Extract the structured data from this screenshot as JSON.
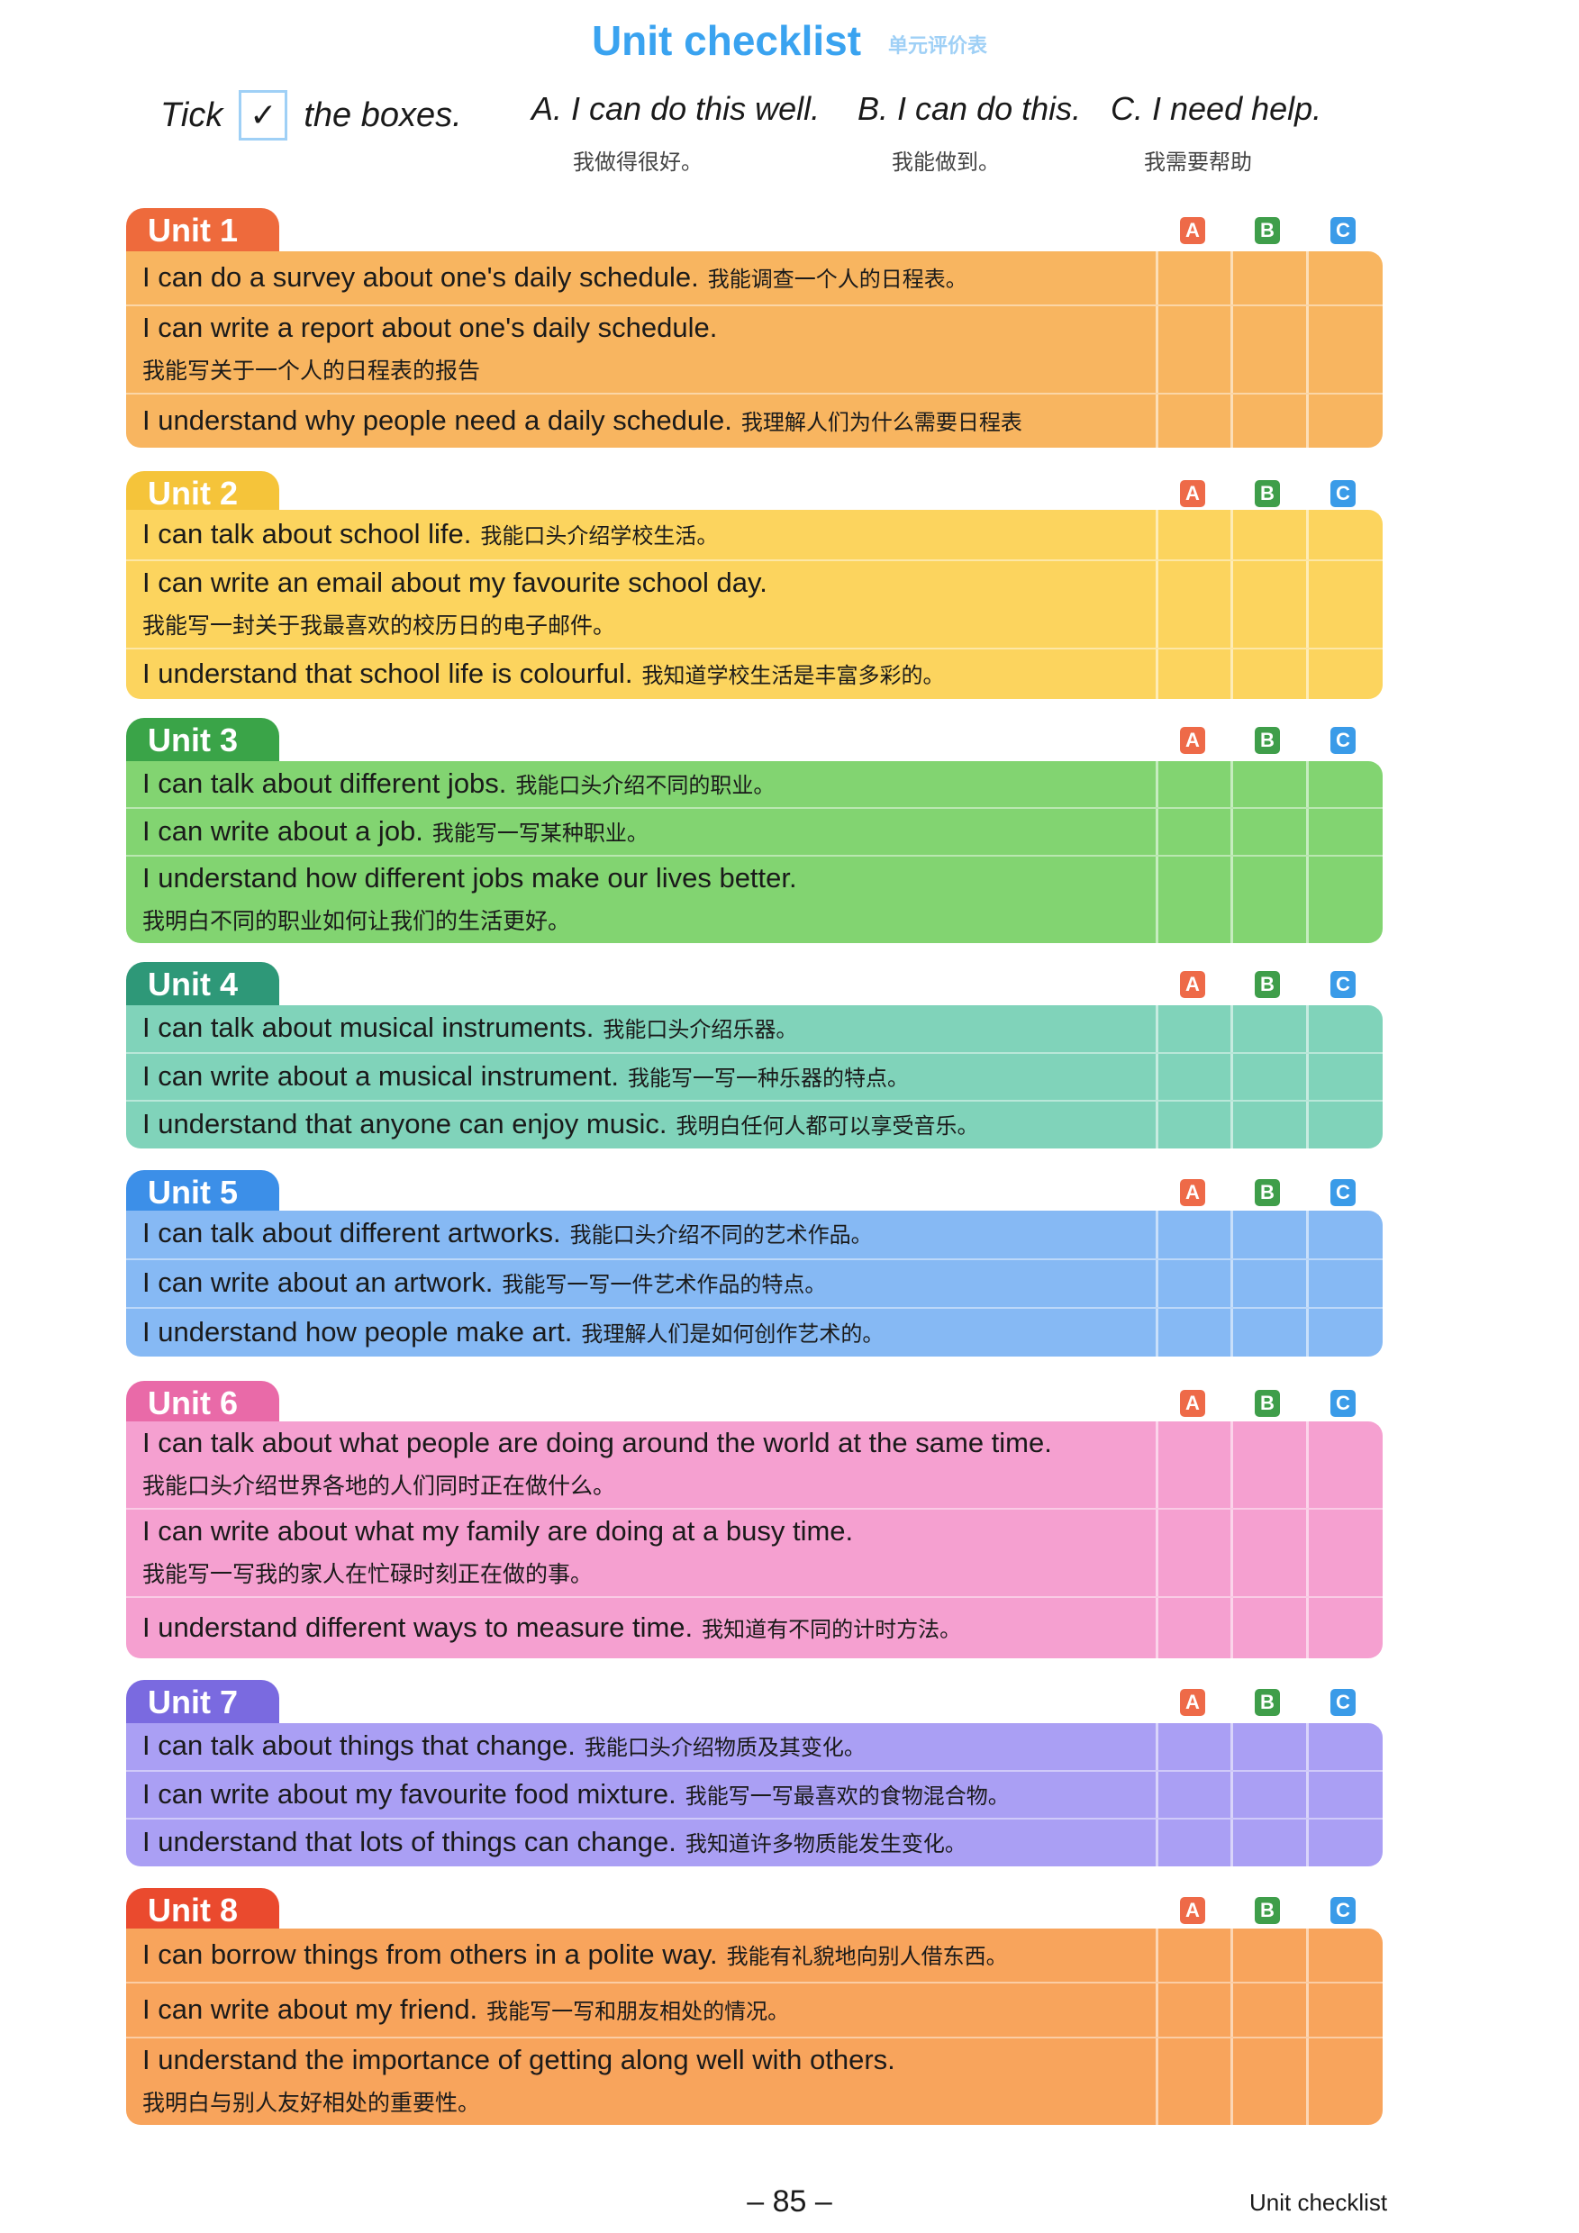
{
  "header": {
    "title": "Unit checklist",
    "title_cn": "单元评价表"
  },
  "legend": {
    "tick_prefix": "Tick",
    "tick_mark": "✓",
    "tick_suffix": "the boxes.",
    "options": [
      {
        "label": "A. I can do this well.",
        "cn": "我做得很好。"
      },
      {
        "label": "B. I can do this.",
        "cn": "我能做到。"
      },
      {
        "label": "C. I need help.",
        "cn": "我需要帮助"
      }
    ]
  },
  "grade_letters": [
    "A",
    "B",
    "C"
  ],
  "grade_colors": [
    "#ee6a48",
    "#3f9e4a",
    "#3a9be8"
  ],
  "units": [
    {
      "name": "Unit 1",
      "tab_color": "#ee6a3c",
      "body_color": "#f8b560",
      "rows": [
        {
          "en": "I can do a survey about one's daily schedule.",
          "cn": "我能调查一个人的日程表。"
        },
        {
          "en": "I can write a report about one's daily schedule.",
          "cn_line": "我能写关于一个人的日程表的报告"
        },
        {
          "en": "I understand why people need a daily schedule.",
          "cn": "我理解人们为什么需要日程表"
        }
      ]
    },
    {
      "name": "Unit 2",
      "tab_color": "#f5c43a",
      "body_color": "#fcd45e",
      "rows": [
        {
          "en": "I can talk about school life.",
          "cn": "我能口头介绍学校生活。"
        },
        {
          "en": "I can write an email about my favourite school day.",
          "cn_line": "我能写一封关于我最喜欢的校历日的电子邮件。"
        },
        {
          "en": "I understand that school life is colourful.",
          "cn": "我知道学校生活是丰富多彩的。"
        }
      ]
    },
    {
      "name": "Unit 3",
      "tab_color": "#3aa448",
      "body_color": "#82d471",
      "rows": [
        {
          "en": "I can talk about different jobs.",
          "cn": "我能口头介绍不同的职业。"
        },
        {
          "en": "I can write about a job.",
          "cn": "我能写一写某种职业。"
        },
        {
          "en": "I understand how different jobs make our lives better.",
          "cn_line": "我明白不同的职业如何让我们的生活更好。"
        }
      ]
    },
    {
      "name": "Unit 4",
      "tab_color": "#2e9878",
      "body_color": "#80d3ba",
      "rows": [
        {
          "en": "I can talk about musical instruments.",
          "cn": "我能口头介绍乐器。"
        },
        {
          "en": "I can write about a musical instrument.",
          "cn": "我能写一写一种乐器的特点。"
        },
        {
          "en": "I understand that anyone can enjoy music.",
          "cn": "我明白任何人都可以享受音乐。"
        }
      ]
    },
    {
      "name": "Unit 5",
      "tab_color": "#3c8fe8",
      "body_color": "#86b9f4",
      "rows": [
        {
          "en": "I can talk about different artworks.",
          "cn": "我能口头介绍不同的艺术作品。"
        },
        {
          "en": "I can write about an artwork.",
          "cn": "我能写一写一件艺术作品的特点。"
        },
        {
          "en": "I understand how people make art.",
          "cn": "我理解人们是如何创作艺术的。"
        }
      ]
    },
    {
      "name": "Unit 6",
      "tab_color": "#e96aa8",
      "body_color": "#f5a0d0",
      "rows": [
        {
          "en": "I can talk about what people are doing around the world at the same time.",
          "cn_line": "我能口头介绍世界各地的人们同时正在做什么。"
        },
        {
          "en": "I can write about what my family are doing at a busy time.",
          "cn_line": "我能写一写我的家人在忙碌时刻正在做的事。"
        },
        {
          "en": "I understand different ways to measure time.",
          "cn": "我知道有不同的计时方法。"
        }
      ]
    },
    {
      "name": "Unit 7",
      "tab_color": "#7a6ae0",
      "body_color": "#aa9ff4",
      "rows": [
        {
          "en": "I can talk about things that change.",
          "cn": "我能口头介绍物质及其变化。"
        },
        {
          "en": "I can write about my favourite food mixture.",
          "cn": "我能写一写最喜欢的食物混合物。"
        },
        {
          "en": "I understand that lots of things can change.",
          "cn": "我知道许多物质能发生变化。"
        }
      ]
    },
    {
      "name": "Unit 8",
      "tab_color": "#ea4a2e",
      "body_color": "#f8a45c",
      "rows": [
        {
          "en": "I can borrow things from others in a polite way.",
          "cn": "我能有礼貌地向别人借东西。"
        },
        {
          "en": "I can write about my friend.",
          "cn": "我能写一写和朋友相处的情况。"
        },
        {
          "en": "I understand the importance of getting along well with others.",
          "cn_line": "我明白与别人友好相处的重要性。"
        }
      ]
    }
  ],
  "footer": {
    "page_number": "– 85 –",
    "section": "Unit checklist"
  }
}
